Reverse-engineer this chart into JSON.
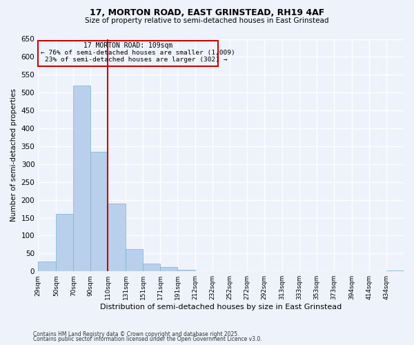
{
  "title": "17, MORTON ROAD, EAST GRINSTEAD, RH19 4AF",
  "subtitle": "Size of property relative to semi-detached houses in East Grinstead",
  "xlabel": "Distribution of semi-detached houses by size in East Grinstead",
  "ylabel": "Number of semi-detached properties",
  "bin_labels": [
    "29sqm",
    "50sqm",
    "70sqm",
    "90sqm",
    "110sqm",
    "131sqm",
    "151sqm",
    "171sqm",
    "191sqm",
    "212sqm",
    "232sqm",
    "252sqm",
    "272sqm",
    "292sqm",
    "313sqm",
    "333sqm",
    "353sqm",
    "373sqm",
    "394sqm",
    "414sqm",
    "434sqm"
  ],
  "bin_edges": [
    29,
    50,
    70,
    90,
    110,
    131,
    151,
    171,
    191,
    212,
    232,
    252,
    272,
    292,
    313,
    333,
    353,
    373,
    394,
    414,
    434
  ],
  "bar_heights": [
    28,
    160,
    520,
    335,
    190,
    63,
    22,
    12,
    5,
    0,
    0,
    0,
    0,
    0,
    0,
    0,
    0,
    0,
    0,
    0,
    2
  ],
  "bar_color": "#b8d0eb",
  "bar_edgecolor": "#7aafd4",
  "vline_x": 110,
  "vline_color": "#cc0000",
  "annotation_title": "17 MORTON ROAD: 109sqm",
  "annotation_line1": "← 76% of semi-detached houses are smaller (1,009)",
  "annotation_line2": "23% of semi-detached houses are larger (302) →",
  "annotation_box_color": "#cc0000",
  "ylim": [
    0,
    650
  ],
  "yticks": [
    0,
    50,
    100,
    150,
    200,
    250,
    300,
    350,
    400,
    450,
    500,
    550,
    600,
    650
  ],
  "bg_color": "#eef2fb",
  "grid_color": "#ffffff",
  "footnote1": "Contains HM Land Registry data © Crown copyright and database right 2025.",
  "footnote2": "Contains public sector information licensed under the Open Government Licence v3.0."
}
